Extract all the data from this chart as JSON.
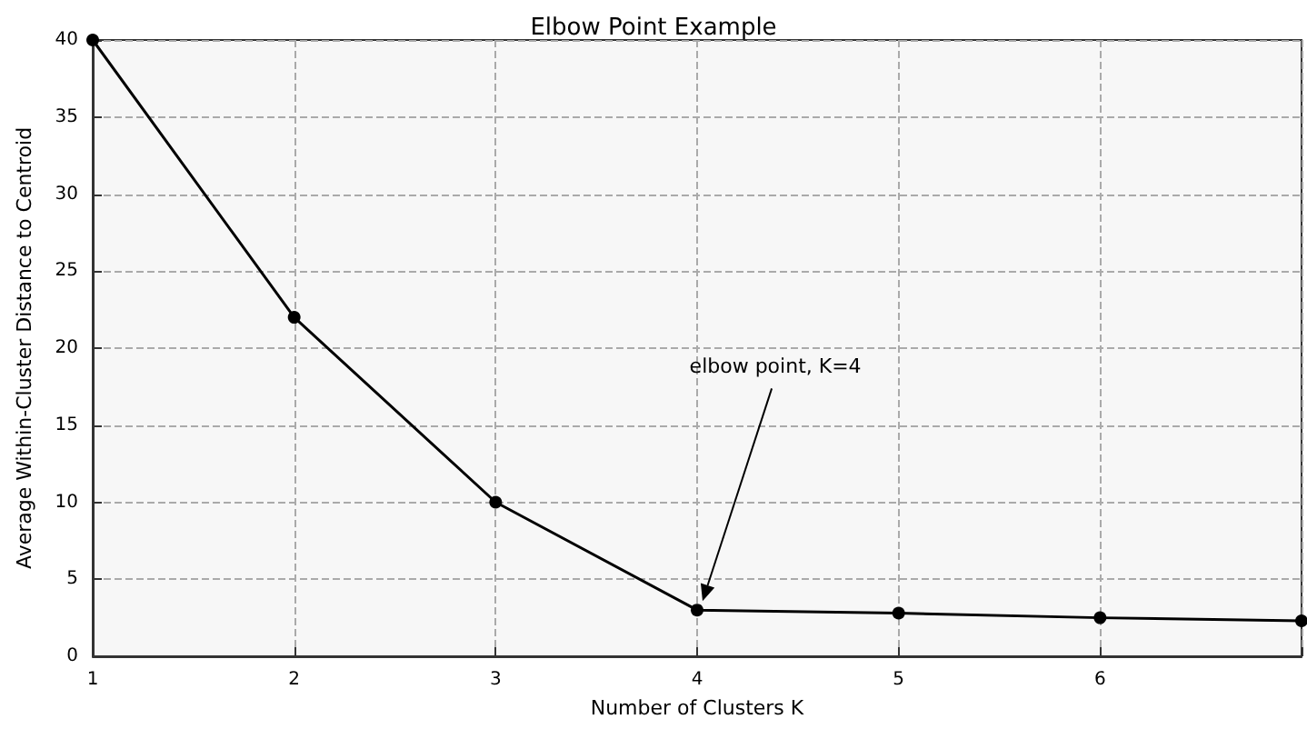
{
  "chart_data": {
    "type": "line",
    "title": "Elbow Point Example",
    "xlabel": "Number of Clusters K",
    "ylabel": "Average Within-Cluster Distance to Centroid",
    "x": [
      1,
      2,
      3,
      4,
      5,
      6,
      7
    ],
    "series": [
      {
        "color": "#000000",
        "values": [
          40,
          22,
          10,
          3,
          2.8,
          2.5,
          2.3
        ]
      }
    ],
    "xlim": [
      1,
      7
    ],
    "xticks": [
      1,
      2,
      3,
      4,
      5,
      6,
      {
        "value": 7,
        "label": null
      }
    ],
    "ylim": [
      0,
      40
    ],
    "yticks": [
      0,
      5,
      10,
      15,
      20,
      25,
      30,
      35,
      40
    ],
    "grid": true,
    "marker": "circle",
    "line_style": "solid",
    "annotations": [
      "elbow point, K=4"
    ]
  }
}
